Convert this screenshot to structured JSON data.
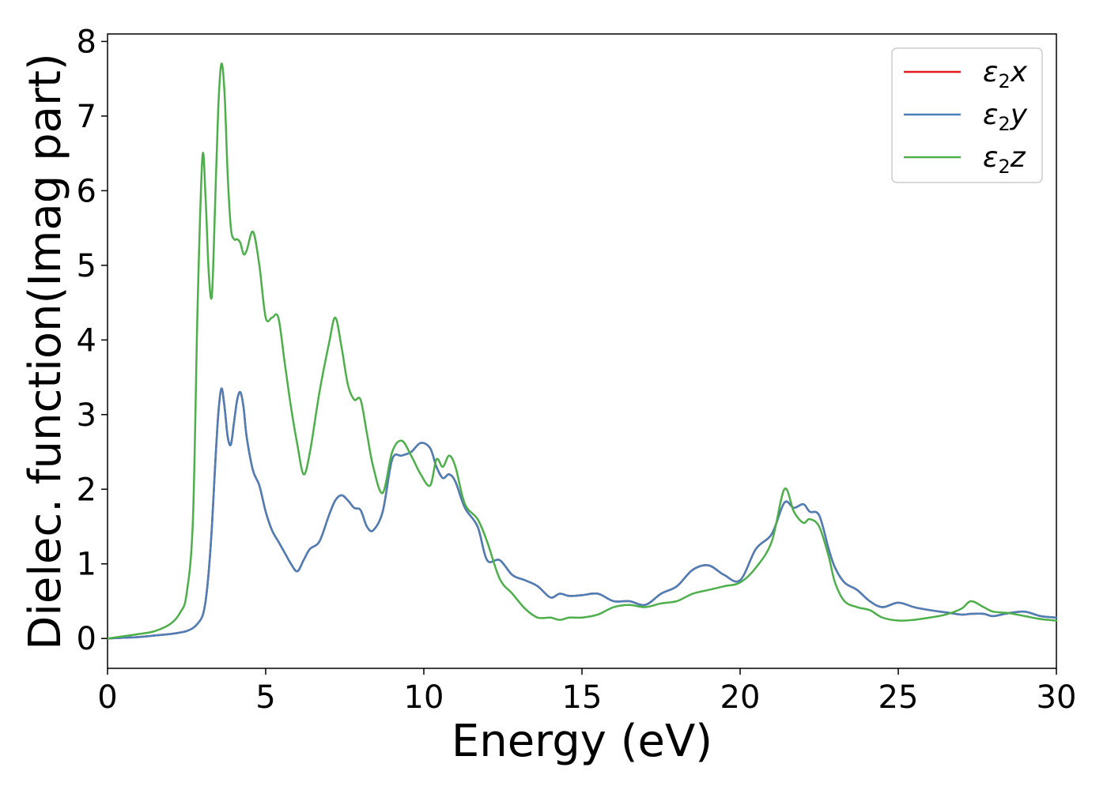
{
  "chart_data": {
    "type": "line",
    "title": "",
    "xlabel": "Energy (eV)",
    "ylabel": "Dielec. function(Imag part)",
    "xlim": [
      0,
      30
    ],
    "ylim": [
      -0.4,
      8.1
    ],
    "xticks": [
      0,
      5,
      10,
      15,
      20,
      25,
      30
    ],
    "yticks": [
      0,
      1,
      2,
      3,
      4,
      5,
      6,
      7,
      8
    ],
    "grid": false,
    "legend_position": "top-right",
    "x": [
      0,
      0.5,
      1,
      1.5,
      2,
      2.3,
      2.5,
      2.7,
      2.85,
      3.0,
      3.1,
      3.2,
      3.3,
      3.4,
      3.5,
      3.6,
      3.7,
      3.8,
      3.9,
      4.0,
      4.1,
      4.2,
      4.3,
      4.4,
      4.6,
      4.8,
      5.0,
      5.2,
      5.4,
      5.6,
      5.8,
      6.0,
      6.2,
      6.4,
      6.7,
      7.0,
      7.2,
      7.4,
      7.6,
      7.8,
      8.0,
      8.2,
      8.4,
      8.7,
      9.0,
      9.3,
      9.6,
      9.9,
      10.2,
      10.4,
      10.6,
      10.8,
      11.0,
      11.3,
      11.7,
      12.0,
      12.4,
      12.8,
      13.2,
      13.6,
      14.0,
      14.3,
      14.6,
      15.0,
      15.5,
      16.0,
      16.5,
      17.0,
      17.5,
      18.0,
      18.5,
      19.0,
      19.5,
      20.0,
      20.5,
      21.0,
      21.4,
      21.7,
      22.0,
      22.2,
      22.5,
      22.8,
      23.0,
      23.3,
      23.7,
      24.1,
      24.5,
      25.0,
      25.5,
      26.0,
      26.5,
      27.0,
      27.3,
      27.7,
      28.0,
      28.5,
      29.0,
      29.5,
      30.0
    ],
    "series": [
      {
        "name": "ε2x",
        "color": "#e41a1c",
        "values": [
          0.0,
          0.01,
          0.02,
          0.04,
          0.06,
          0.08,
          0.1,
          0.14,
          0.2,
          0.3,
          0.5,
          0.9,
          1.5,
          2.3,
          3.0,
          3.35,
          3.1,
          2.7,
          2.6,
          2.9,
          3.2,
          3.3,
          3.1,
          2.7,
          2.25,
          2.05,
          1.7,
          1.45,
          1.3,
          1.15,
          1.0,
          0.9,
          1.05,
          1.2,
          1.3,
          1.65,
          1.85,
          1.92,
          1.85,
          1.75,
          1.72,
          1.5,
          1.45,
          1.7,
          2.4,
          2.45,
          2.5,
          2.62,
          2.55,
          2.3,
          2.15,
          2.2,
          2.1,
          1.75,
          1.5,
          1.05,
          1.05,
          0.85,
          0.78,
          0.7,
          0.55,
          0.6,
          0.57,
          0.58,
          0.6,
          0.5,
          0.5,
          0.45,
          0.6,
          0.7,
          0.92,
          0.98,
          0.85,
          0.78,
          1.2,
          1.4,
          1.82,
          1.75,
          1.8,
          1.7,
          1.65,
          1.2,
          0.95,
          0.75,
          0.65,
          0.5,
          0.42,
          0.48,
          0.42,
          0.38,
          0.35,
          0.32,
          0.33,
          0.33,
          0.3,
          0.34,
          0.36,
          0.3,
          0.28
        ]
      },
      {
        "name": "ε2y",
        "color": "#4a7fb8",
        "values": [
          0.0,
          0.01,
          0.02,
          0.04,
          0.06,
          0.08,
          0.1,
          0.14,
          0.2,
          0.3,
          0.5,
          0.9,
          1.5,
          2.3,
          3.0,
          3.35,
          3.1,
          2.7,
          2.6,
          2.9,
          3.2,
          3.3,
          3.1,
          2.7,
          2.25,
          2.05,
          1.7,
          1.45,
          1.3,
          1.15,
          1.0,
          0.9,
          1.05,
          1.2,
          1.3,
          1.65,
          1.85,
          1.92,
          1.85,
          1.75,
          1.72,
          1.5,
          1.45,
          1.7,
          2.4,
          2.45,
          2.5,
          2.62,
          2.55,
          2.3,
          2.15,
          2.2,
          2.1,
          1.75,
          1.5,
          1.05,
          1.05,
          0.85,
          0.78,
          0.7,
          0.55,
          0.6,
          0.57,
          0.58,
          0.6,
          0.5,
          0.5,
          0.45,
          0.6,
          0.7,
          0.92,
          0.98,
          0.85,
          0.78,
          1.2,
          1.4,
          1.82,
          1.75,
          1.8,
          1.7,
          1.65,
          1.2,
          0.95,
          0.75,
          0.65,
          0.5,
          0.42,
          0.48,
          0.42,
          0.38,
          0.35,
          0.32,
          0.33,
          0.33,
          0.3,
          0.34,
          0.36,
          0.3,
          0.28
        ]
      },
      {
        "name": "ε2z",
        "color": "#4daf4a",
        "values": [
          0.0,
          0.03,
          0.06,
          0.1,
          0.2,
          0.35,
          0.6,
          1.6,
          4.5,
          6.45,
          5.9,
          4.9,
          4.6,
          5.8,
          7.1,
          7.7,
          7.3,
          6.2,
          5.5,
          5.35,
          5.35,
          5.3,
          5.15,
          5.2,
          5.45,
          5.0,
          4.3,
          4.3,
          4.3,
          3.7,
          3.1,
          2.6,
          2.2,
          2.5,
          3.3,
          3.95,
          4.3,
          3.9,
          3.4,
          3.2,
          3.2,
          2.75,
          2.3,
          1.95,
          2.5,
          2.65,
          2.45,
          2.2,
          2.05,
          2.4,
          2.3,
          2.45,
          2.3,
          1.8,
          1.6,
          1.3,
          0.8,
          0.6,
          0.4,
          0.28,
          0.28,
          0.25,
          0.28,
          0.28,
          0.32,
          0.42,
          0.45,
          0.42,
          0.47,
          0.5,
          0.6,
          0.65,
          0.7,
          0.75,
          0.95,
          1.3,
          2.0,
          1.7,
          1.55,
          1.6,
          1.5,
          1.1,
          0.75,
          0.5,
          0.42,
          0.38,
          0.28,
          0.24,
          0.25,
          0.28,
          0.32,
          0.4,
          0.5,
          0.42,
          0.36,
          0.34,
          0.3,
          0.26,
          0.24
        ]
      }
    ]
  }
}
